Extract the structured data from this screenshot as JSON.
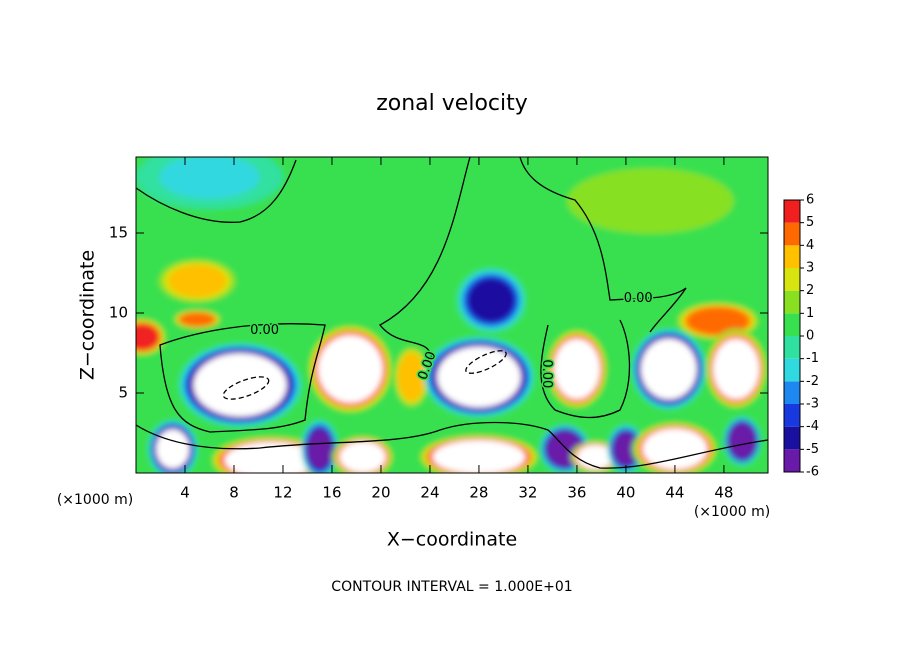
{
  "chart_data": {
    "type": "contour",
    "title": "zonal velocity",
    "xlabel": "X−coordinate",
    "ylabel": "Z−coordinate",
    "x_unit": "(×1000 m)",
    "y_unit": "(×1000 m)",
    "footer": "CONTOUR INTERVAL = 1.000E+01",
    "xlim": [
      0,
      51.6
    ],
    "ylim": [
      0,
      19.75
    ],
    "xticks": [
      4,
      8,
      12,
      16,
      20,
      24,
      28,
      32,
      36,
      40,
      44,
      48
    ],
    "yticks": [
      5,
      10,
      15
    ],
    "background_value": 0.5,
    "colorbar": {
      "levels": [
        -6,
        -5,
        -4,
        -3,
        -2,
        -1,
        0,
        1,
        2,
        3,
        4,
        5,
        6
      ],
      "colors": [
        "#6a1aa8",
        "#1a10a0",
        "#1838e0",
        "#1e88f0",
        "#30d8e0",
        "#30e0a0",
        "#38e050",
        "#88e020",
        "#d8e410",
        "#ffc000",
        "#ff6a00",
        "#f02020",
        "#f09090"
      ],
      "extend_color": "#ffffff"
    },
    "blobs": [
      {
        "x": 6,
        "z": 18.5,
        "rx": 6,
        "rz": 2,
        "value": -1.5
      },
      {
        "x": 42,
        "z": 17,
        "rx": 10,
        "rz": 3,
        "value": 1.2
      },
      {
        "x": 5,
        "z": 12,
        "rx": 3.5,
        "rz": 1.5,
        "value": 3.2
      },
      {
        "x": 5,
        "z": 9.6,
        "rx": 2,
        "rz": 0.6,
        "value": 5
      },
      {
        "x": 0.5,
        "z": 8.5,
        "rx": 2,
        "rz": 1.2,
        "value": 5.5
      },
      {
        "x": 29,
        "z": 10.8,
        "rx": 2.8,
        "rz": 2,
        "value": -4.5
      },
      {
        "x": 47.5,
        "z": 9.5,
        "rx": 3.5,
        "rz": 1.2,
        "value": 5
      },
      {
        "x": 8.5,
        "z": 5.5,
        "rx": 5,
        "rz": 2.6,
        "value": -8
      },
      {
        "x": 17.5,
        "z": 6.5,
        "rx": 3.5,
        "rz": 2.8,
        "value": 8
      },
      {
        "x": 22.5,
        "z": 6,
        "rx": 1.5,
        "rz": 2,
        "value": 4
      },
      {
        "x": 28,
        "z": 6,
        "rx": 4.5,
        "rz": 2.5,
        "value": -8
      },
      {
        "x": 36,
        "z": 6.5,
        "rx": 2.5,
        "rz": 2.5,
        "value": 8
      },
      {
        "x": 43.5,
        "z": 6.5,
        "rx": 3,
        "rz": 2.5,
        "value": -8
      },
      {
        "x": 49,
        "z": 6.5,
        "rx": 2.5,
        "rz": 2.5,
        "value": 8
      },
      {
        "x": 3,
        "z": 1.5,
        "rx": 2,
        "rz": 1.8,
        "value": -6.5
      },
      {
        "x": 11,
        "z": 0.8,
        "rx": 5,
        "rz": 1.5,
        "value": 8
      },
      {
        "x": 15,
        "z": 1.5,
        "rx": 1.5,
        "rz": 1.8,
        "value": -5
      },
      {
        "x": 18.5,
        "z": 1,
        "rx": 2.5,
        "rz": 1.3,
        "value": 8
      },
      {
        "x": 28,
        "z": 1,
        "rx": 5,
        "rz": 1.4,
        "value": 8
      },
      {
        "x": 35,
        "z": 1.5,
        "rx": 2,
        "rz": 1.5,
        "value": -6
      },
      {
        "x": 37.5,
        "z": 1,
        "rx": 2,
        "rz": 1,
        "value": 8
      },
      {
        "x": 40,
        "z": 1.5,
        "rx": 1.5,
        "rz": 1.5,
        "value": -5
      },
      {
        "x": 44,
        "z": 1.5,
        "rx": 3.5,
        "rz": 1.7,
        "value": 8
      },
      {
        "x": 49.5,
        "z": 2,
        "rx": 1.5,
        "rz": 1.5,
        "value": -6
      }
    ],
    "contour_labels": [
      {
        "text": "0.00",
        "x": 10.5,
        "z": 8.9,
        "angle": 0
      },
      {
        "text": "0.00",
        "x": 41,
        "z": 10.9,
        "angle": 0
      },
      {
        "text": "0.00",
        "x": 33.5,
        "z": 6.2,
        "angle": 90
      },
      {
        "text": "0.00",
        "x": 23.8,
        "z": 6.7,
        "angle": -70
      }
    ]
  }
}
